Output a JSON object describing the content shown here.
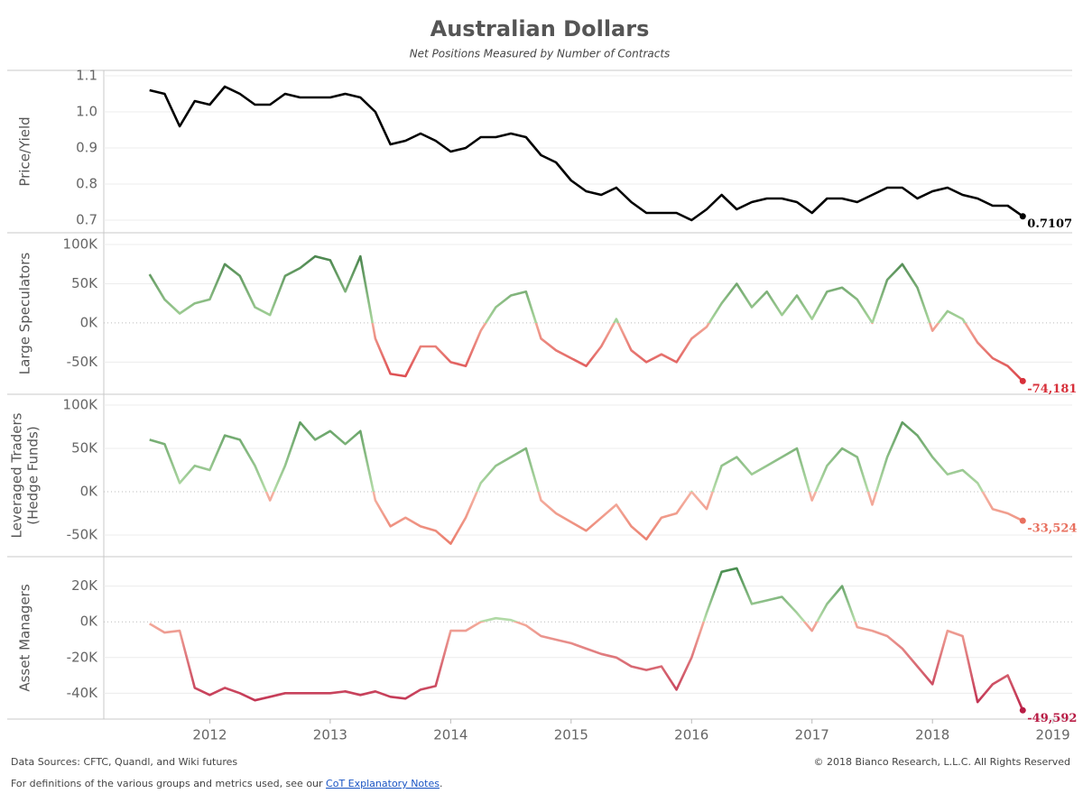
{
  "title": "Australian Dollars",
  "subtitle": "Net Positions Measured by Number of Contracts",
  "footer": {
    "source": "Data Sources: CFTC, Quandl, and Wiki futures",
    "copyright": "© 2018 Bianco Research, L.L.C. All Rights Reserved",
    "note_prefix": "For definitions of the various groups and metrics used, see our ",
    "note_link": "CoT Explanatory Notes",
    "note_suffix": "."
  },
  "chart_data": [
    {
      "type": "line",
      "ylabel": [
        "Price/Yield"
      ],
      "color": "#000000",
      "end_label_color": "#000000",
      "x": [
        2011.5,
        2011.625,
        2011.75,
        2011.875,
        2012,
        2012.125,
        2012.25,
        2012.375,
        2012.5,
        2012.625,
        2012.75,
        2012.875,
        2013,
        2013.125,
        2013.25,
        2013.375,
        2013.5,
        2013.625,
        2013.75,
        2013.875,
        2014,
        2014.125,
        2014.25,
        2014.375,
        2014.5,
        2014.625,
        2014.75,
        2014.875,
        2015,
        2015.125,
        2015.25,
        2015.375,
        2015.5,
        2015.625,
        2015.75,
        2015.875,
        2016,
        2016.125,
        2016.25,
        2016.375,
        2016.5,
        2016.625,
        2016.75,
        2016.875,
        2017,
        2017.125,
        2017.25,
        2017.375,
        2017.5,
        2017.625,
        2017.75,
        2017.875,
        2018,
        2018.125,
        2018.25,
        2018.375,
        2018.5,
        2018.625,
        2018.75
      ],
      "values": [
        1.06,
        1.05,
        0.96,
        1.03,
        1.02,
        1.07,
        1.05,
        1.02,
        1.02,
        1.05,
        1.04,
        1.04,
        1.04,
        1.05,
        1.04,
        1.0,
        0.91,
        0.92,
        0.94,
        0.92,
        0.89,
        0.9,
        0.93,
        0.93,
        0.94,
        0.93,
        0.88,
        0.86,
        0.81,
        0.78,
        0.77,
        0.79,
        0.75,
        0.72,
        0.72,
        0.72,
        0.7,
        0.73,
        0.77,
        0.73,
        0.75,
        0.76,
        0.76,
        0.75,
        0.72,
        0.76,
        0.76,
        0.75,
        0.77,
        0.79,
        0.79,
        0.76,
        0.78,
        0.79,
        0.77,
        0.76,
        0.74,
        0.74,
        0.7107
      ],
      "end_label": "0.7107",
      "xlim": [
        2011.12,
        2019.16
      ],
      "ylim": [
        0.665,
        1.115
      ],
      "yticks": [
        0.7,
        0.8,
        0.9,
        {
          "value": 1.0,
          "label": "1.0"
        },
        1.1
      ],
      "grid": true
    },
    {
      "type": "line",
      "ylabel": [
        "Large Speculators"
      ],
      "gradient": [
        "#2b6a33",
        "#a9d69d",
        "#f2a898",
        "#d7303a"
      ],
      "end_label_color": "#d7303a",
      "x": [
        2011.5,
        2011.625,
        2011.75,
        2011.875,
        2012,
        2012.125,
        2012.25,
        2012.375,
        2012.5,
        2012.625,
        2012.75,
        2012.875,
        2013,
        2013.125,
        2013.25,
        2013.375,
        2013.5,
        2013.625,
        2013.75,
        2013.875,
        2014,
        2014.125,
        2014.25,
        2014.375,
        2014.5,
        2014.625,
        2014.75,
        2014.875,
        2015,
        2015.125,
        2015.25,
        2015.375,
        2015.5,
        2015.625,
        2015.75,
        2015.875,
        2016,
        2016.125,
        2016.25,
        2016.375,
        2016.5,
        2016.625,
        2016.75,
        2016.875,
        2017,
        2017.125,
        2017.25,
        2017.375,
        2017.5,
        2017.625,
        2017.75,
        2017.875,
        2018,
        2018.125,
        2018.25,
        2018.375,
        2018.5,
        2018.625,
        2018.75
      ],
      "values": [
        62000,
        30000,
        12000,
        25000,
        30000,
        75000,
        60000,
        20000,
        10000,
        60000,
        70000,
        85000,
        80000,
        40000,
        85000,
        -20000,
        -65000,
        -68000,
        -30000,
        -30000,
        -50000,
        -55000,
        -10000,
        20000,
        35000,
        40000,
        -20000,
        -35000,
        -45000,
        -55000,
        -30000,
        5000,
        -35000,
        -50000,
        -40000,
        -50000,
        -20000,
        -5000,
        25000,
        50000,
        20000,
        40000,
        10000,
        35000,
        5000,
        40000,
        45000,
        30000,
        0,
        55000,
        75000,
        45000,
        -10000,
        15000,
        5000,
        -25000,
        -45000,
        -55000,
        -74181
      ],
      "end_label": "-74,181",
      "xlim": [
        2011.12,
        2019.16
      ],
      "ylim": [
        -91000,
        115000
      ],
      "yticks": [
        {
          "value": -50000,
          "label": "-50K"
        },
        {
          "value": 0,
          "label": "0K"
        },
        {
          "value": 50000,
          "label": "50K"
        },
        {
          "value": 100000,
          "label": "100K"
        }
      ],
      "grid": true
    },
    {
      "type": "line",
      "ylabel": [
        "Leveraged Traders",
        "(Hedge Funds)"
      ],
      "gradient": [
        "#3f8445",
        "#b4dca8",
        "#f5b4a5",
        "#e8705f"
      ],
      "end_label_color": "#e8705f",
      "x": [
        2011.5,
        2011.625,
        2011.75,
        2011.875,
        2012,
        2012.125,
        2012.25,
        2012.375,
        2012.5,
        2012.625,
        2012.75,
        2012.875,
        2013,
        2013.125,
        2013.25,
        2013.375,
        2013.5,
        2013.625,
        2013.75,
        2013.875,
        2014,
        2014.125,
        2014.25,
        2014.375,
        2014.5,
        2014.625,
        2014.75,
        2014.875,
        2015,
        2015.125,
        2015.25,
        2015.375,
        2015.5,
        2015.625,
        2015.75,
        2015.875,
        2016,
        2016.125,
        2016.25,
        2016.375,
        2016.5,
        2016.625,
        2016.75,
        2016.875,
        2017,
        2017.125,
        2017.25,
        2017.375,
        2017.5,
        2017.625,
        2017.75,
        2017.875,
        2018,
        2018.125,
        2018.25,
        2018.375,
        2018.5,
        2018.625,
        2018.75
      ],
      "values": [
        60000,
        55000,
        10000,
        30000,
        25000,
        65000,
        60000,
        30000,
        -10000,
        30000,
        80000,
        60000,
        70000,
        55000,
        70000,
        -10000,
        -40000,
        -30000,
        -40000,
        -45000,
        -60000,
        -30000,
        10000,
        30000,
        40000,
        50000,
        -10000,
        -25000,
        -35000,
        -45000,
        -30000,
        -15000,
        -40000,
        -55000,
        -30000,
        -25000,
        0,
        -20000,
        30000,
        40000,
        20000,
        30000,
        40000,
        50000,
        -10000,
        30000,
        50000,
        40000,
        -15000,
        40000,
        80000,
        65000,
        40000,
        20000,
        25000,
        10000,
        -20000,
        -25000,
        -33524
      ],
      "end_label": "-33,524",
      "xlim": [
        2011.12,
        2019.16
      ],
      "ylim": [
        -75000,
        112500
      ],
      "yticks": [
        {
          "value": -50000,
          "label": "-50K"
        },
        {
          "value": 0,
          "label": "0K"
        },
        {
          "value": 50000,
          "label": "50K"
        },
        {
          "value": 100000,
          "label": "100K"
        }
      ],
      "grid": true
    },
    {
      "type": "line",
      "ylabel": [
        "Asset Managers"
      ],
      "gradient": [
        "#2f7a3a",
        "#b7deab",
        "#f4ab9b",
        "#b81c45"
      ],
      "end_label_color": "#b81c45",
      "x": [
        2011.5,
        2011.625,
        2011.75,
        2011.875,
        2012,
        2012.125,
        2012.25,
        2012.375,
        2012.5,
        2012.625,
        2012.75,
        2012.875,
        2013,
        2013.125,
        2013.25,
        2013.375,
        2013.5,
        2013.625,
        2013.75,
        2013.875,
        2014,
        2014.125,
        2014.25,
        2014.375,
        2014.5,
        2014.625,
        2014.75,
        2014.875,
        2015,
        2015.125,
        2015.25,
        2015.375,
        2015.5,
        2015.625,
        2015.75,
        2015.875,
        2016,
        2016.125,
        2016.25,
        2016.375,
        2016.5,
        2016.625,
        2016.75,
        2016.875,
        2017,
        2017.125,
        2017.25,
        2017.375,
        2017.5,
        2017.625,
        2017.75,
        2017.875,
        2018,
        2018.125,
        2018.25,
        2018.375,
        2018.5,
        2018.625,
        2018.75
      ],
      "values": [
        -1000,
        -6000,
        -5000,
        -37000,
        -41000,
        -37000,
        -40000,
        -44000,
        -42000,
        -40000,
        -40000,
        -40000,
        -40000,
        -39000,
        -41000,
        -39000,
        -42000,
        -43000,
        -38000,
        -36000,
        -5000,
        -5000,
        0,
        2000,
        1000,
        -2000,
        -8000,
        -10000,
        -12000,
        -15000,
        -18000,
        -20000,
        -25000,
        -27000,
        -25000,
        -38000,
        -20000,
        5000,
        28000,
        30000,
        10000,
        12000,
        14000,
        5000,
        -5000,
        10000,
        20000,
        -3000,
        -5000,
        -8000,
        -15000,
        -25000,
        -35000,
        -5000,
        -8000,
        -45000,
        -35000,
        -30000,
        -49592
      ],
      "end_label": "-49,592",
      "xlim": [
        2011.12,
        2019.16
      ],
      "ylim": [
        -54500,
        36500
      ],
      "yticks": [
        {
          "value": -40000,
          "label": "-40K"
        },
        {
          "value": -20000,
          "label": "-20K"
        },
        {
          "value": 0,
          "label": "0K"
        },
        {
          "value": 20000,
          "label": "20K"
        }
      ],
      "xticks": [
        2012,
        2013,
        2014,
        2015,
        2016,
        2017,
        2018,
        2019
      ],
      "grid": true
    }
  ]
}
